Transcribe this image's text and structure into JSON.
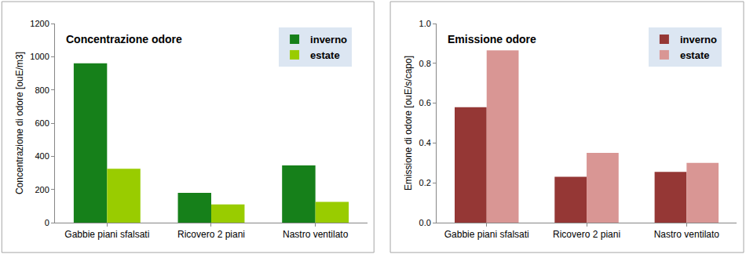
{
  "chart_data": [
    {
      "type": "bar",
      "title": "Concentrazione odore",
      "y_label": "Concentrazione di odore [ouE/m3]",
      "categories": [
        "Gabbie piani sfalsati",
        "Ricovero 2 piani",
        "Nastro ventilato"
      ],
      "series": [
        {
          "name": "inverno",
          "color": "#16801a",
          "values": [
            960,
            180,
            345
          ]
        },
        {
          "name": "estate",
          "color": "#99cc00",
          "values": [
            325,
            110,
            125
          ]
        }
      ],
      "ylim": [
        0,
        1200
      ],
      "yticks": [
        0,
        200,
        400,
        600,
        800,
        1000,
        1200
      ],
      "grid": false,
      "legend": "upper right"
    },
    {
      "type": "bar",
      "title": "Emissione odore",
      "y_label": "Emissione di odore [ouE/s/capo]",
      "categories": [
        "Gabbie piani sfalsati",
        "Ricovero 2 piani",
        "Nastro ventilato"
      ],
      "series": [
        {
          "name": "inverno",
          "color": "#953735",
          "values": [
            0.58,
            0.23,
            0.255
          ]
        },
        {
          "name": "estate",
          "color": "#d99694",
          "values": [
            0.865,
            0.35,
            0.3
          ]
        }
      ],
      "ylim": [
        0,
        1
      ],
      "yticks": [
        {
          "value": 0,
          "label": "0.0"
        },
        {
          "value": 0.2,
          "label": "0.2"
        },
        {
          "value": 0.4,
          "label": "0.4"
        },
        {
          "value": 0.6,
          "label": "0.6"
        },
        {
          "value": 0.8,
          "label": "0.8"
        },
        {
          "value": 1,
          "label": "1.0"
        }
      ],
      "grid": false,
      "legend": "upper right"
    }
  ]
}
